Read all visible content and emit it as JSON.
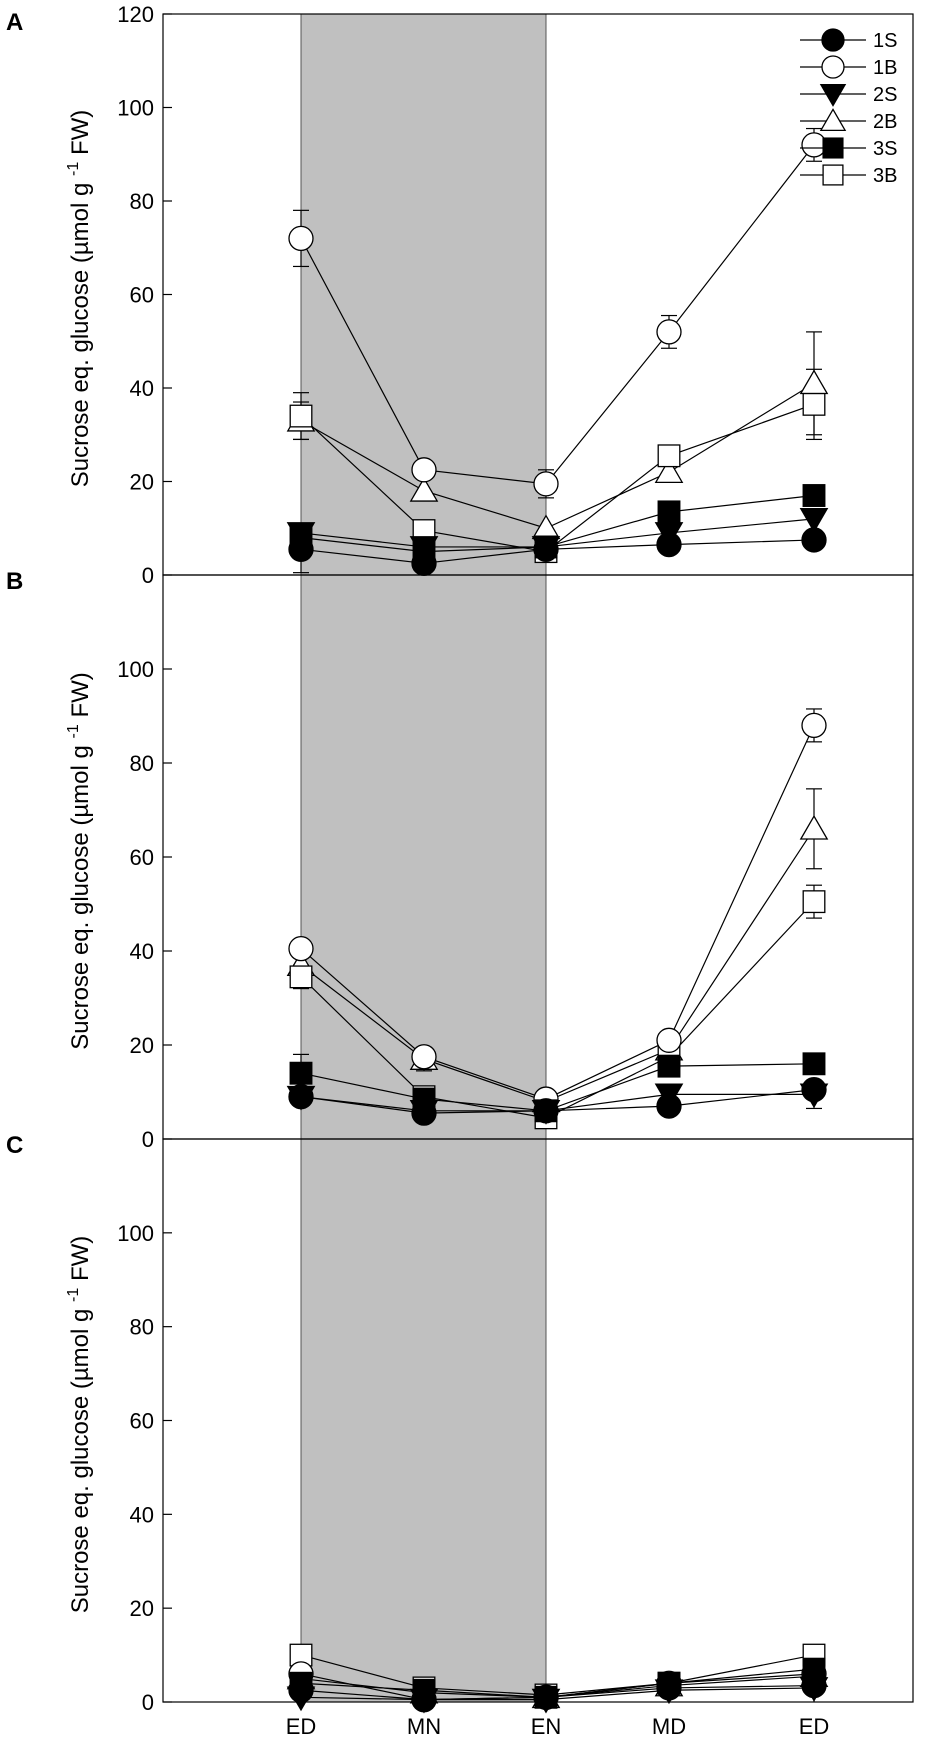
{
  "chart_data": {
    "type": "line",
    "x_categories": [
      "ED",
      "MN",
      "EN",
      "MD",
      "ED"
    ],
    "shaded_region": {
      "from": "ED",
      "to": "EN",
      "meaning": "night"
    },
    "legend": {
      "position": "top-right",
      "entries": [
        "1S",
        "1B",
        "2S",
        "2B",
        "3S",
        "3B"
      ]
    },
    "series_styles": {
      "1S": {
        "marker": "circle",
        "fill": "#000000"
      },
      "1B": {
        "marker": "circle",
        "fill": "#ffffff"
      },
      "2S": {
        "marker": "triangle-down",
        "fill": "#000000"
      },
      "2B": {
        "marker": "triangle-up",
        "fill": "#ffffff"
      },
      "3S": {
        "marker": "square",
        "fill": "#000000"
      },
      "3B": {
        "marker": "square",
        "fill": "#ffffff"
      }
    },
    "panels": [
      {
        "label": "A",
        "ylabel": "Sucrose eq. glucose (µmol g-1 FW)",
        "ylim": [
          0,
          120
        ],
        "yticks": [
          "0",
          "20",
          "40",
          "60",
          "80",
          "100",
          "120"
        ],
        "series": [
          {
            "name": "1S",
            "values": [
              5.5,
              2.5,
              5.5,
              6.5,
              7.5
            ],
            "errors": [
              5,
              0,
              0,
              0,
              0
            ]
          },
          {
            "name": "1B",
            "values": [
              72,
              22.5,
              19.5,
              52,
              92
            ],
            "errors": [
              6,
              0,
              3,
              3.5,
              3.5
            ]
          },
          {
            "name": "2S",
            "values": [
              9,
              6,
              6,
              9,
              12
            ],
            "errors": [
              0,
              0,
              0,
              0,
              0
            ]
          },
          {
            "name": "2B",
            "values": [
              33,
              18,
              10,
              22,
              41
            ],
            "errors": [
              4,
              0,
              0,
              0,
              11
            ]
          },
          {
            "name": "3S",
            "values": [
              8,
              5,
              6,
              13.5,
              17
            ],
            "errors": [
              0,
              0,
              0,
              0,
              0
            ]
          },
          {
            "name": "3B",
            "values": [
              34,
              9.5,
              5,
              25.5,
              36.5
            ],
            "errors": [
              5,
              0,
              0,
              0,
              7.5
            ]
          }
        ]
      },
      {
        "label": "B",
        "ylabel": "Sucrose eq. glucose (µmol g-1 FW)",
        "ylim": [
          0,
          120
        ],
        "yticks": [
          "0",
          "20",
          "40",
          "60",
          "80",
          "100"
        ],
        "series": [
          {
            "name": "1S",
            "values": [
              9,
              5.5,
              6,
              7,
              10.5
            ],
            "errors": [
              0,
              0,
              0,
              0,
              0
            ]
          },
          {
            "name": "1B",
            "values": [
              40.5,
              17.5,
              8.5,
              21,
              88
            ],
            "errors": [
              0,
              0,
              0,
              0,
              3.5
            ]
          },
          {
            "name": "2S",
            "values": [
              9,
              6,
              6,
              9.5,
              9.5
            ],
            "errors": [
              0,
              0,
              0,
              0,
              3
            ]
          },
          {
            "name": "2B",
            "values": [
              37,
              17,
              8,
              19,
              66
            ],
            "errors": [
              0,
              2.5,
              0,
              0,
              8.5
            ]
          },
          {
            "name": "3S",
            "values": [
              14,
              8.5,
              6,
              15.5,
              16
            ],
            "errors": [
              4,
              0,
              0,
              0,
              0
            ]
          },
          {
            "name": "3B",
            "values": [
              34.5,
              9,
              4.5,
              17.5,
              50.5
            ],
            "errors": [
              2.5,
              0,
              0,
              0,
              3.5
            ]
          }
        ]
      },
      {
        "label": "C",
        "ylabel": "Sucrose eq. glucose (µmol g-1 FW)",
        "ylim": [
          0,
          120
        ],
        "yticks": [
          "0",
          "20",
          "40",
          "60",
          "80",
          "100"
        ],
        "series": [
          {
            "name": "1S",
            "values": [
              2.5,
              0.5,
              1,
              3,
              3.5
            ],
            "errors": [
              0,
              0,
              0,
              0,
              0
            ]
          },
          {
            "name": "1B",
            "values": [
              6,
              0.5,
              1,
              4,
              6
            ],
            "errors": [
              0,
              0,
              0,
              0,
              0
            ]
          },
          {
            "name": "2S",
            "values": [
              1,
              0.5,
              0.5,
              2.5,
              3
            ],
            "errors": [
              0,
              0,
              0,
              0,
              0
            ]
          },
          {
            "name": "2B",
            "values": [
              5,
              2,
              1,
              3.5,
              5.5
            ],
            "errors": [
              0,
              0,
              0,
              0,
              0
            ]
          },
          {
            "name": "3S",
            "values": [
              4,
              2.5,
              1,
              4,
              7
            ],
            "errors": [
              0,
              0,
              0,
              0,
              0
            ]
          },
          {
            "name": "3B",
            "values": [
              10,
              3,
              1.5,
              4,
              10
            ],
            "errors": [
              0,
              0,
              0,
              0,
              0
            ]
          }
        ]
      }
    ]
  }
}
